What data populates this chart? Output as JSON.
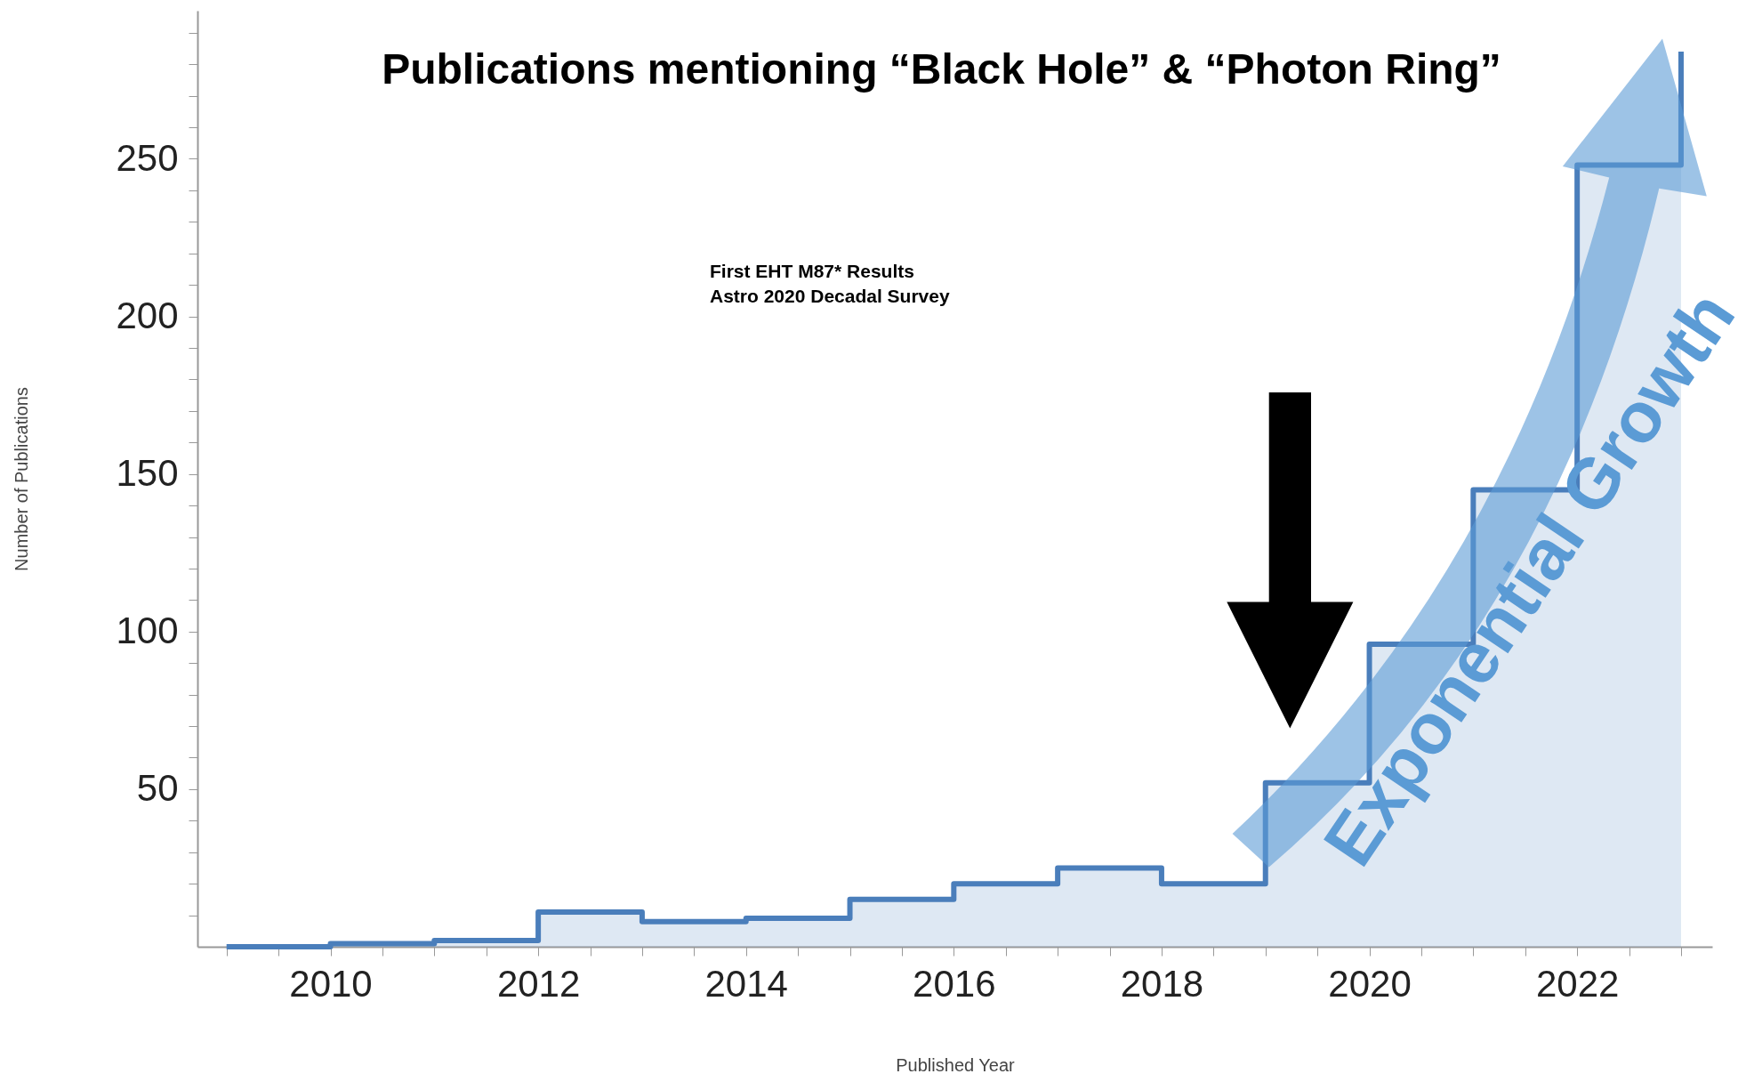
{
  "chart_data": {
    "type": "step",
    "title": "Publications mentioning “Black Hole” & “Photon Ring”",
    "xlabel": "Published Year",
    "ylabel": "Number of Publications",
    "x": [
      2009,
      2010,
      2011,
      2012,
      2013,
      2014,
      2015,
      2016,
      2017,
      2018,
      2019,
      2020,
      2021,
      2022,
      2023
    ],
    "series": [
      {
        "color": "#4a7ebb",
        "values": [
          0,
          1,
          2,
          11,
          8,
          9,
          15,
          20,
          25,
          20,
          52,
          96,
          145,
          248,
          284
        ]
      }
    ],
    "xlim": [
      2008.72,
      2023.3
    ],
    "ylim": [
      0,
      297
    ],
    "xticks": [
      {
        "value": 2009,
        "label": null
      },
      {
        "value": 2009.5,
        "label": null
      },
      2010,
      {
        "value": 2010.5,
        "label": null
      },
      {
        "value": 2011,
        "label": null
      },
      {
        "value": 2011.5,
        "label": null
      },
      2012,
      {
        "value": 2012.5,
        "label": null
      },
      {
        "value": 2013,
        "label": null
      },
      {
        "value": 2013.5,
        "label": null
      },
      2014,
      {
        "value": 2014.5,
        "label": null
      },
      {
        "value": 2015,
        "label": null
      },
      {
        "value": 2015.5,
        "label": null
      },
      2016,
      {
        "value": 2016.5,
        "label": null
      },
      {
        "value": 2017,
        "label": null
      },
      {
        "value": 2017.5,
        "label": null
      },
      2018,
      {
        "value": 2018.5,
        "label": null
      },
      {
        "value": 2019,
        "label": null
      },
      {
        "value": 2019.5,
        "label": null
      },
      2020,
      {
        "value": 2020.5,
        "label": null
      },
      {
        "value": 2021,
        "label": null
      },
      {
        "value": 2021.5,
        "label": null
      },
      2022,
      {
        "value": 2022.5,
        "label": null
      },
      {
        "value": 2023,
        "label": null
      }
    ],
    "yticks": [
      {
        "value": 10,
        "label": null
      },
      {
        "value": 20,
        "label": null
      },
      {
        "value": 30,
        "label": null
      },
      {
        "value": 40,
        "label": null
      },
      50,
      {
        "value": 60,
        "label": null
      },
      {
        "value": 70,
        "label": null
      },
      {
        "value": 80,
        "label": null
      },
      {
        "value": 90,
        "label": null
      },
      100,
      {
        "value": 110,
        "label": null
      },
      {
        "value": 120,
        "label": null
      },
      {
        "value": 130,
        "label": null
      },
      {
        "value": 140,
        "label": null
      },
      150,
      {
        "value": 160,
        "label": null
      },
      {
        "value": 170,
        "label": null
      },
      {
        "value": 180,
        "label": null
      },
      {
        "value": 190,
        "label": null
      },
      200,
      {
        "value": 210,
        "label": null
      },
      {
        "value": 220,
        "label": null
      },
      {
        "value": 230,
        "label": null
      },
      {
        "value": 240,
        "label": null
      },
      250,
      {
        "value": 260,
        "label": null
      },
      {
        "value": 270,
        "label": null
      },
      {
        "value": 280,
        "label": null
      },
      {
        "value": 290,
        "label": null
      }
    ],
    "annotations": [
      "First EHT M87* Results",
      "Astro 2020 Decadal Survey",
      "Exponential Growth"
    ],
    "grid": false
  }
}
